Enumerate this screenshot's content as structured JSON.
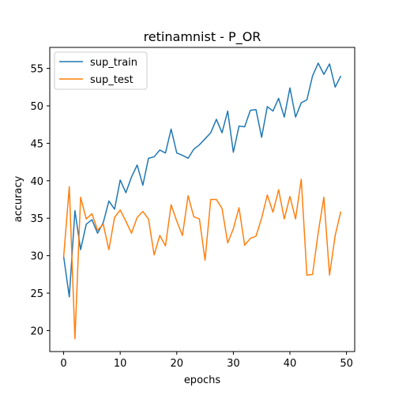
{
  "chart_data": {
    "type": "line",
    "title": "retinamnist - P_OR",
    "xlabel": "epochs",
    "ylabel": "accuracy",
    "xlim": [
      -2.45,
      51.45
    ],
    "ylim": [
      17.2,
      57.8
    ],
    "xticks": [
      0,
      10,
      20,
      30,
      40,
      50
    ],
    "yticks": [
      20,
      25,
      30,
      35,
      40,
      45,
      50,
      55
    ],
    "grid": false,
    "legend_position": "top-left",
    "x": [
      0,
      1,
      2,
      3,
      4,
      5,
      6,
      7,
      8,
      9,
      10,
      11,
      12,
      13,
      14,
      15,
      16,
      17,
      18,
      19,
      20,
      21,
      22,
      23,
      24,
      25,
      26,
      27,
      28,
      29,
      30,
      31,
      32,
      33,
      34,
      35,
      36,
      37,
      38,
      39,
      40,
      41,
      42,
      43,
      44,
      45,
      46,
      47,
      48,
      49
    ],
    "series": [
      {
        "name": "sup_train",
        "color": "#1f77b4",
        "values": [
          29.9,
          24.5,
          36.0,
          30.8,
          34.2,
          34.8,
          33.0,
          34.4,
          37.3,
          36.2,
          40.1,
          38.4,
          40.5,
          42.1,
          39.4,
          43.0,
          43.2,
          44.1,
          43.7,
          46.9,
          43.7,
          43.4,
          43.0,
          44.2,
          44.8,
          45.6,
          46.4,
          48.2,
          46.4,
          49.3,
          43.8,
          47.3,
          47.2,
          49.4,
          49.5,
          45.8,
          49.9,
          49.3,
          51.0,
          48.5,
          52.4,
          48.5,
          50.4,
          50.8,
          54.0,
          55.7,
          54.2,
          55.6,
          52.5,
          54.0
        ]
      },
      {
        "name": "sup_test",
        "color": "#ff7f0e",
        "values": [
          29.8,
          39.2,
          18.9,
          37.8,
          34.9,
          35.6,
          33.4,
          34.2,
          30.8,
          35.1,
          36.1,
          34.6,
          33.0,
          35.1,
          35.9,
          34.9,
          30.1,
          32.7,
          31.3,
          36.8,
          34.6,
          32.7,
          38.0,
          35.2,
          34.9,
          29.4,
          37.5,
          37.5,
          36.3,
          31.7,
          33.6,
          36.4,
          31.4,
          32.3,
          32.6,
          35.0,
          38.1,
          35.8,
          38.8,
          34.9,
          37.9,
          34.9,
          40.2,
          27.4,
          27.5,
          33.1,
          37.8,
          27.4,
          32.7,
          35.9
        ]
      }
    ]
  }
}
